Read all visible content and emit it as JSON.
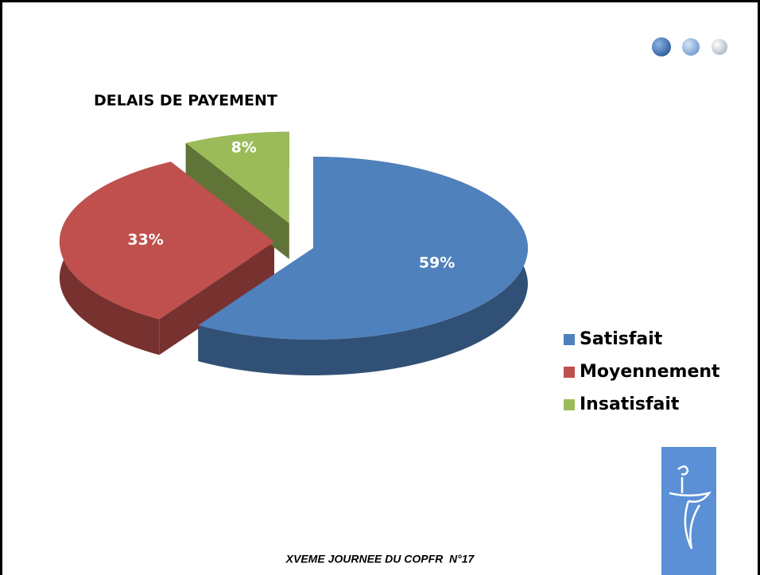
{
  "chart_data": {
    "type": "pie",
    "title": "DELAIS DE PAYEMENT",
    "categories": [
      "Satisfait",
      "Moyennement",
      "Insatisfait"
    ],
    "values": [
      59,
      33,
      8
    ],
    "value_labels": [
      "59%",
      "33%",
      "8%"
    ],
    "colors": [
      "#4f81bd",
      "#c0504d",
      "#9bbb59"
    ],
    "legend": "right"
  },
  "footer": "XVEME JOURNEE DU COPFR  N°17"
}
